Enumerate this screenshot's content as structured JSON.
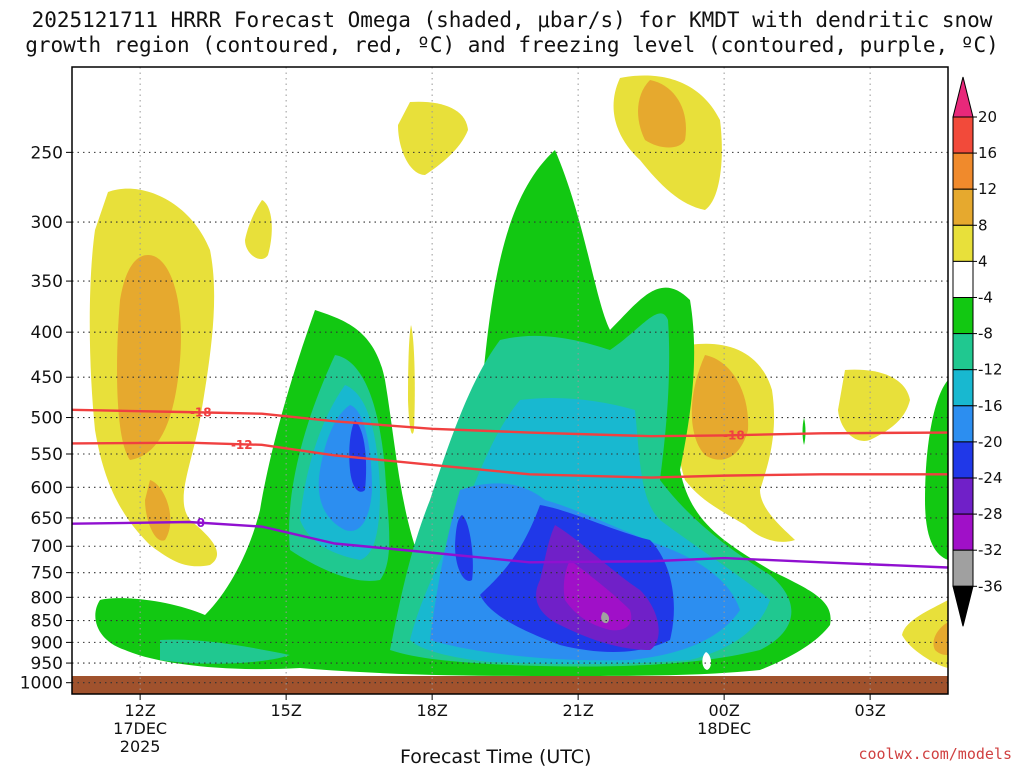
{
  "title": {
    "line1": "2025121711 HRRR Forecast Omega (shaded, μbar/s) for KMDT with dendritic snow",
    "line2": "growth region (contoured, red, ºC) and freezing level (contoured, purple, ºC)"
  },
  "credit": "coolwx.com/models",
  "chart_data": {
    "type": "heatmap",
    "title": "2025121711 HRRR Forecast Omega (shaded, μbar/s) for KMDT with dendritic snow growth region (contoured, red, ºC) and freezing level (contoured, purple, ºC)",
    "xlabel": "Forecast Time (UTC)",
    "ylabel": "",
    "x_ticks": [
      {
        "label": "12Z",
        "sub": [
          "17DEC",
          "2025"
        ]
      },
      {
        "label": "15Z",
        "sub": []
      },
      {
        "label": "18Z",
        "sub": []
      },
      {
        "label": "21Z",
        "sub": []
      },
      {
        "label": "00Z",
        "sub": [
          "18DEC"
        ]
      },
      {
        "label": "03Z",
        "sub": []
      }
    ],
    "y_scale": "log-pressure (hPa), inverted",
    "y_ticks": [
      250,
      300,
      350,
      400,
      450,
      500,
      550,
      600,
      650,
      700,
      750,
      800,
      850,
      900,
      950,
      1000
    ],
    "grid": true,
    "colorbar": {
      "levels": [
        20,
        16,
        12,
        8,
        4,
        -4,
        -8,
        -12,
        -16,
        -20,
        -24,
        -28,
        -32,
        -36
      ],
      "colors": [
        "#e8287a",
        "#f24a3a",
        "#f08a2c",
        "#e6a92e",
        "#e8e03a",
        "#ffffff",
        "#12c812",
        "#20c890",
        "#18b8d0",
        "#2c8ef0",
        "#2038e8",
        "#7020c8",
        "#a010c8",
        "#a0a0a0",
        "#000000"
      ]
    },
    "contours": [
      {
        "kind": "red",
        "label": "-18",
        "values_hpa": [
          490,
          493,
          495,
          505,
          515,
          520,
          525,
          524,
          521,
          520
        ]
      },
      {
        "kind": "red",
        "label": "-12",
        "values_hpa": [
          535,
          534,
          537,
          552,
          566,
          580,
          585,
          582,
          580,
          580
        ]
      },
      {
        "kind": "purple",
        "label": "0",
        "values_hpa": [
          660,
          657,
          665,
          695,
          712,
          730,
          728,
          722,
          730,
          740
        ]
      }
    ],
    "contour_x_hours": [
      10.6,
      13,
      14.5,
      16,
      18,
      20,
      22.5,
      24,
      26,
      28.6
    ]
  }
}
